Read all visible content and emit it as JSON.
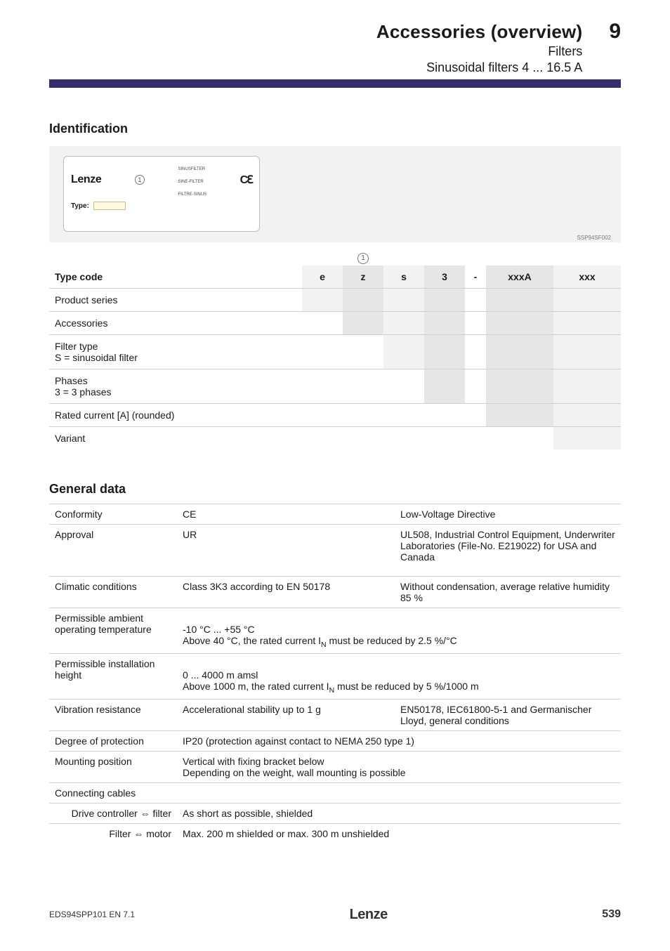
{
  "header": {
    "title": "Accessories (overview)",
    "sub1": "Filters",
    "sub2": "Sinusoidal filters 4 ... 16.5 A",
    "chapter": "9"
  },
  "identification": {
    "heading": "Identification",
    "nameplate": {
      "brand": "Lenze",
      "marker": "1",
      "tiny1": "SINUSFILTER",
      "tiny2": "SINE-FILTER",
      "tiny3": "FILTRE-SINUS",
      "ce": "Cu",
      "type_label": "Type:",
      "ssp": "SSP94SF002"
    },
    "typecode": {
      "circle_label": "1",
      "col_heads": {
        "type_code": "Type code",
        "e": "e",
        "z": "z",
        "s": "s",
        "three": "3",
        "dash": "-",
        "xxxA": "xxxA",
        "xxx": "xxx"
      },
      "rows": [
        "Product series",
        "Accessories",
        "Filter type\nS = sinusoidal filter",
        "Phases\n3 = 3 phases",
        "Rated current [A] (rounded)",
        "Variant"
      ]
    }
  },
  "general": {
    "heading": "General data",
    "rows": [
      {
        "label": "Conformity",
        "mid": "CE",
        "right": "Low-Voltage Directive"
      },
      {
        "label": "Approval",
        "mid": "UR",
        "right": "UL508, Industrial Control Equipment, Underwriter Laboratories (File-No. E219022) for USA and Canada"
      }
    ],
    "rows2": [
      {
        "label": "Climatic conditions",
        "mid": "Class 3K3 according to EN 50178",
        "right": "Without condensation, average relative humidity 85 %"
      },
      {
        "label": "Permissible ambient operating temperature",
        "span": "-10 °C ... +55 °C\nAbove 40 °C, the rated current I",
        "sub": "N",
        "span_tail": " must be reduced by 2.5 %/°C"
      },
      {
        "label": "Permissible installation height",
        "span": "0 ... 4000 m amsl\nAbove 1000 m, the rated current I",
        "sub": "N",
        "span_tail": " must be reduced by 5 %/1000 m"
      },
      {
        "label": "Vibration resistance",
        "mid": "Accelerational stability up to 1 g",
        "right": "EN50178, IEC61800-5-1 and Germanischer Lloyd, general conditions"
      },
      {
        "label": "Degree of protection",
        "span_plain": "IP20 (protection against contact to NEMA 250 type 1)"
      },
      {
        "label": "Mounting position",
        "span_plain": "Vertical with fixing bracket below\nDepending on the weight, wall mounting is possible"
      },
      {
        "label": "Connecting cables",
        "span_plain": ""
      },
      {
        "label_indent": "Drive controller ⇔ filter",
        "span_plain": "As short as possible, shielded"
      },
      {
        "label_indent": "Filter ⇔ motor",
        "span_plain": "Max. 200 m shielded or max. 300 m unshielded"
      }
    ]
  },
  "footer": {
    "left": "EDS94SPP101  EN   7.1",
    "center": "Lenze",
    "page": "539"
  },
  "colors": {
    "header_bar": "#332c6f",
    "grey_light": "#f2f2f2",
    "grey_mid": "#e6e6e6",
    "border": "#d0d0d0"
  }
}
